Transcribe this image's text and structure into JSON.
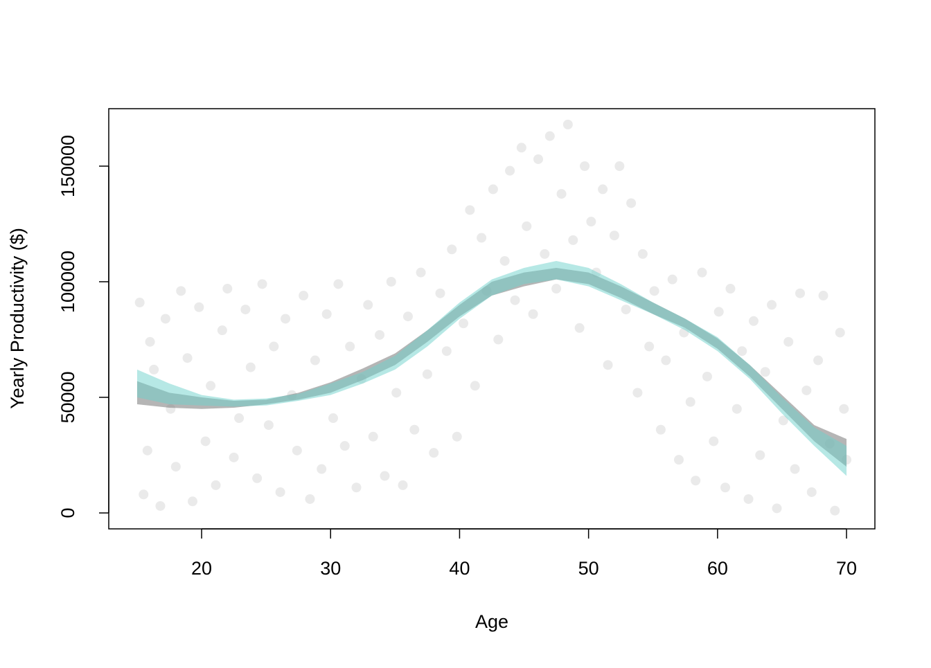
{
  "chart_data": {
    "type": "scatter-bands",
    "x_label": "Age",
    "y_label": "Yearly Productivity ($)",
    "xlim": [
      12.8,
      72.2
    ],
    "ylim": [
      -6886,
      174850
    ],
    "xticks": [
      20,
      30,
      40,
      50,
      60,
      70
    ],
    "yticks": [
      0,
      50000,
      100000,
      150000
    ],
    "point_color": "rgba(185,185,185,0.3)",
    "points": {
      "x": [
        15.2,
        15.5,
        15.8,
        16,
        16.3,
        16.8,
        17.2,
        17.6,
        18,
        18.4,
        18.9,
        19.3,
        19.8,
        20.3,
        20.7,
        21.1,
        21.6,
        22,
        22.5,
        22.9,
        23.4,
        23.8,
        24.3,
        24.7,
        25.2,
        25.6,
        26.1,
        26.5,
        27,
        27.4,
        27.9,
        28.4,
        28.8,
        29.3,
        29.7,
        30.2,
        30.6,
        31.1,
        31.5,
        32,
        32.4,
        32.9,
        33.3,
        33.8,
        34.2,
        34.7,
        35.1,
        35.6,
        36,
        36.5,
        37,
        37.5,
        38,
        38.5,
        39,
        39.4,
        39.8,
        40.3,
        40.8,
        41.2,
        41.7,
        42.1,
        42.6,
        43,
        43.5,
        43.9,
        44.3,
        44.8,
        45.2,
        45.7,
        46.1,
        46.6,
        47,
        47.5,
        47.9,
        48.4,
        48.8,
        49.3,
        49.7,
        50.2,
        50.6,
        51.1,
        51.5,
        52,
        52.4,
        52.9,
        53.3,
        53.8,
        54.2,
        54.7,
        55.1,
        55.6,
        56,
        56.5,
        57,
        57.4,
        57.9,
        58.3,
        58.8,
        59.2,
        59.7,
        60.1,
        60.6,
        61,
        61.5,
        61.9,
        62.4,
        62.8,
        63.3,
        63.7,
        64.2,
        64.6,
        65.1,
        65.5,
        66,
        66.4,
        66.9,
        67.3,
        67.8,
        68.2,
        68.7,
        69.1,
        69.5,
        69.8,
        70
      ],
      "y": [
        91000,
        8000,
        27000,
        74000,
        62000,
        3000,
        84000,
        45000,
        20000,
        96000,
        67000,
        5000,
        89000,
        31000,
        55000,
        12000,
        79000,
        97000,
        24000,
        41000,
        88000,
        63000,
        15000,
        99000,
        38000,
        72000,
        9000,
        84000,
        51000,
        27000,
        94000,
        6000,
        66000,
        19000,
        86000,
        41000,
        99000,
        29000,
        72000,
        11000,
        58000,
        90000,
        33000,
        77000,
        16000,
        100000,
        52000,
        12000,
        85000,
        36000,
        104000,
        60000,
        26000,
        95000,
        70000,
        114000,
        33000,
        82000,
        131000,
        55000,
        119000,
        96000,
        140000,
        75000,
        109000,
        148000,
        92000,
        158000,
        124000,
        86000,
        153000,
        112000,
        163000,
        97000,
        138000,
        168000,
        118000,
        80000,
        150000,
        126000,
        104000,
        140000,
        64000,
        120000,
        150000,
        88000,
        134000,
        52000,
        112000,
        72000,
        96000,
        36000,
        66000,
        101000,
        23000,
        78000,
        48000,
        14000,
        104000,
        59000,
        31000,
        87000,
        11000,
        97000,
        45000,
        70000,
        6000,
        83000,
        25000,
        61000,
        90000,
        2000,
        40000,
        74000,
        19000,
        95000,
        53000,
        9000,
        66000,
        94000,
        30000,
        1000,
        78000,
        45000,
        23000
      ]
    },
    "bands": [
      {
        "color": "rgba(120,120,120,0.55)",
        "x": [
          15,
          17.5,
          20,
          22.5,
          25,
          27.5,
          30,
          32.5,
          35,
          37.5,
          40,
          42.5,
          45,
          47.5,
          50,
          52.5,
          55,
          57.5,
          60,
          62.5,
          65,
          67.5,
          70
        ],
        "lower": [
          47000,
          45500,
          45000,
          45500,
          47000,
          49000,
          52000,
          57500,
          64000,
          74000,
          85000,
          94000,
          98000,
          101000,
          99000,
          93000,
          86000,
          80000,
          71000,
          59000,
          45000,
          31000,
          20000
        ],
        "upper": [
          57000,
          52000,
          50000,
          48500,
          49000,
          52000,
          56500,
          62500,
          69000,
          79000,
          90000,
          100000,
          104000,
          106000,
          104000,
          98000,
          91000,
          84000,
          75500,
          64000,
          51000,
          38000,
          32000
        ]
      },
      {
        "color": "rgba(110,210,204,0.5)",
        "x": [
          15,
          17.5,
          20,
          22.5,
          25,
          27.5,
          30,
          32.5,
          35,
          37.5,
          40,
          42.5,
          45,
          47.5,
          50,
          52.5,
          55,
          57.5,
          60,
          62.5,
          65,
          67.5,
          70
        ],
        "lower": [
          50000,
          47000,
          46500,
          46000,
          46500,
          48500,
          51000,
          56000,
          62000,
          72000,
          84000,
          94000,
          99000,
          101000,
          98000,
          92000,
          86000,
          79000,
          70000,
          58000,
          43000,
          29000,
          16000
        ],
        "upper": [
          62000,
          56000,
          51000,
          49000,
          49500,
          51500,
          56000,
          61000,
          68000,
          79000,
          91000,
          101000,
          106000,
          109000,
          106000,
          99000,
          91000,
          84000,
          76000,
          64000,
          50000,
          37000,
          29000
        ]
      }
    ]
  }
}
